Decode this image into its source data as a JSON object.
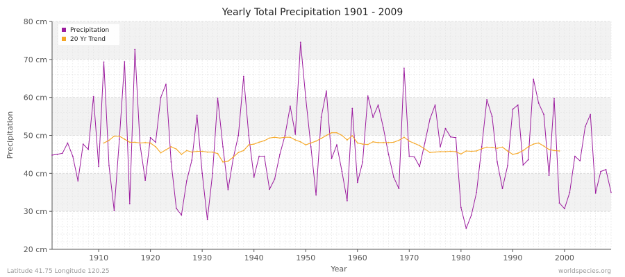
{
  "chart_data": {
    "type": "line",
    "title": "Yearly Total Precipitation 1901 - 2009",
    "xlabel": "Year",
    "ylabel": "Precipitation",
    "xlim": [
      1901,
      2009
    ],
    "ylim": [
      20,
      80
    ],
    "y_ticks": [
      20,
      30,
      40,
      50,
      60,
      70,
      80
    ],
    "y_tick_labels": [
      "20 cm",
      "30 cm",
      "40 cm",
      "50 cm",
      "60 cm",
      "70 cm",
      "80 cm"
    ],
    "x_ticks": [
      1910,
      1920,
      1930,
      1940,
      1950,
      1960,
      1970,
      1980,
      1990,
      2000
    ],
    "x_tick_labels": [
      "1910",
      "1920",
      "1930",
      "1940",
      "1950",
      "1960",
      "1970",
      "1980",
      "1990",
      "2000"
    ],
    "grid": true,
    "legend_position": "top-left",
    "series": [
      {
        "name": "Precipitation",
        "color": "#9b1b9e",
        "x": [
          1901,
          1902,
          1903,
          1904,
          1905,
          1906,
          1907,
          1908,
          1909,
          1910,
          1911,
          1912,
          1913,
          1914,
          1915,
          1916,
          1917,
          1918,
          1919,
          1920,
          1921,
          1922,
          1923,
          1924,
          1925,
          1926,
          1927,
          1928,
          1929,
          1930,
          1931,
          1932,
          1933,
          1934,
          1935,
          1936,
          1937,
          1938,
          1939,
          1940,
          1941,
          1942,
          1943,
          1944,
          1945,
          1946,
          1947,
          1948,
          1949,
          1950,
          1951,
          1952,
          1953,
          1954,
          1955,
          1956,
          1957,
          1958,
          1959,
          1960,
          1961,
          1962,
          1963,
          1964,
          1965,
          1966,
          1967,
          1968,
          1969,
          1970,
          1971,
          1972,
          1973,
          1974,
          1975,
          1976,
          1977,
          1978,
          1979,
          1980,
          1981,
          1982,
          1983,
          1984,
          1985,
          1986,
          1987,
          1988,
          1989,
          1990,
          1991,
          1992,
          1993,
          1994,
          1995,
          1996,
          1997,
          1998,
          1999,
          2000,
          2001,
          2002,
          2003,
          2004,
          2005,
          2006,
          2007,
          2008,
          2009
        ],
        "values": [
          44.8,
          45.0,
          45.3,
          48.0,
          44.5,
          38.0,
          47.7,
          46.3,
          60.2,
          41.8,
          69.3,
          42.0,
          30.2,
          49.0,
          69.4,
          32.0,
          72.6,
          47.5,
          38.2,
          49.4,
          48.2,
          60.0,
          63.5,
          43.0,
          30.8,
          29.0,
          38.0,
          43.5,
          55.3,
          40.0,
          27.8,
          40.0,
          59.8,
          47.0,
          35.7,
          44.0,
          50.0,
          65.5,
          50.0,
          39.0,
          44.5,
          44.5,
          35.8,
          38.5,
          45.0,
          50.0,
          57.7,
          50.3,
          74.5,
          60.0,
          47.0,
          34.3,
          54.8,
          61.7,
          43.9,
          47.5,
          40.5,
          32.8,
          57.1,
          37.6,
          43.0,
          60.4,
          54.8,
          58.0,
          52.0,
          45.0,
          39.0,
          36.0,
          67.7,
          44.5,
          44.3,
          41.8,
          48.0,
          54.3,
          58.0,
          47.0,
          51.8,
          49.6,
          49.4,
          31.0,
          25.5,
          29.0,
          35.0,
          47.0,
          59.4,
          55.0,
          43.0,
          36.0,
          42.0,
          56.9,
          58.0,
          42.2,
          43.6,
          64.8,
          58.5,
          55.5,
          39.5,
          59.7,
          32.2,
          30.7,
          35.0,
          44.5,
          43.3,
          52.3,
          55.5,
          34.8,
          40.5,
          41.0,
          35.0
        ]
      },
      {
        "name": "20 Yr Trend",
        "color": "#f5a623",
        "x": [
          1911,
          1912,
          1913,
          1914,
          1915,
          1916,
          1917,
          1918,
          1919,
          1920,
          1921,
          1922,
          1923,
          1924,
          1925,
          1926,
          1927,
          1928,
          1929,
          1930,
          1931,
          1932,
          1933,
          1934,
          1935,
          1936,
          1937,
          1938,
          1939,
          1940,
          1941,
          1942,
          1943,
          1944,
          1945,
          1946,
          1947,
          1948,
          1949,
          1950,
          1951,
          1952,
          1953,
          1954,
          1955,
          1956,
          1957,
          1958,
          1959,
          1960,
          1961,
          1962,
          1963,
          1964,
          1965,
          1966,
          1967,
          1968,
          1969,
          1970,
          1971,
          1972,
          1973,
          1974,
          1975,
          1976,
          1977,
          1978,
          1979,
          1980,
          1981,
          1982,
          1983,
          1984,
          1985,
          1986,
          1987,
          1988,
          1989,
          1990,
          1991,
          1992,
          1993,
          1994,
          1995,
          1996,
          1997,
          1998,
          1999
        ],
        "values": [
          48.0,
          48.7,
          49.8,
          49.8,
          49.0,
          48.2,
          48.2,
          48.0,
          48.1,
          48.0,
          47.0,
          45.4,
          46.2,
          47.0,
          46.4,
          45.0,
          46.0,
          45.6,
          45.8,
          45.8,
          45.6,
          45.6,
          45.2,
          43.0,
          43.2,
          44.3,
          45.5,
          46.0,
          47.5,
          47.7,
          48.2,
          48.6,
          49.3,
          49.5,
          49.3,
          49.5,
          49.5,
          48.8,
          48.3,
          47.5,
          48.0,
          48.5,
          49.2,
          50.0,
          50.7,
          50.7,
          50.0,
          48.8,
          49.9,
          48.0,
          47.7,
          47.6,
          48.3,
          48.1,
          48.1,
          48.1,
          48.2,
          48.7,
          49.5,
          48.5,
          47.9,
          47.3,
          46.4,
          45.5,
          45.6,
          45.7,
          45.7,
          45.8,
          45.7,
          45.1,
          45.9,
          45.8,
          45.9,
          46.5,
          46.9,
          46.8,
          46.6,
          46.9,
          45.9,
          45.0,
          45.3,
          46.0,
          47.0,
          47.7,
          48.0,
          47.2,
          46.3,
          46.0,
          45.9
        ]
      }
    ]
  },
  "footer": {
    "left": "Latitude 41.75 Longitude 120.25",
    "right": "worldspecies.org"
  },
  "colors": {
    "plot_band_light": "#ffffff",
    "plot_band_dark": "#f2f2f2",
    "grid": "#dddddd",
    "axis": "#555555"
  }
}
